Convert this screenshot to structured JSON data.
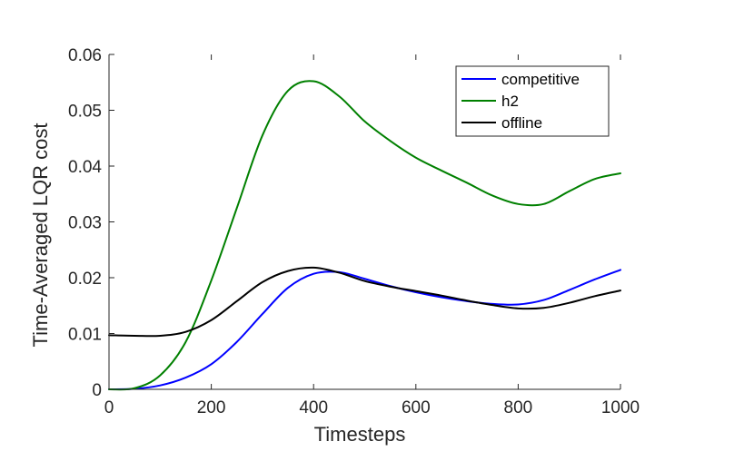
{
  "chart_data": {
    "type": "line",
    "xlabel": "Timesteps",
    "ylabel": "Time-Averaged LQR cost",
    "xlim": [
      0,
      1000
    ],
    "ylim": [
      0,
      0.06
    ],
    "xticks": [
      0,
      200,
      400,
      600,
      800,
      1000
    ],
    "yticks": [
      0,
      0.01,
      0.02,
      0.03,
      0.04,
      0.05,
      0.06
    ],
    "xtick_labels": [
      "0",
      "200",
      "400",
      "600",
      "800",
      "1000"
    ],
    "ytick_labels": [
      "0",
      "0.01",
      "0.02",
      "0.03",
      "0.04",
      "0.05",
      "0.06"
    ],
    "grid": false,
    "legend_position": "top-right",
    "x": [
      0,
      50,
      100,
      150,
      200,
      250,
      300,
      350,
      400,
      450,
      500,
      550,
      600,
      650,
      700,
      750,
      800,
      850,
      900,
      950,
      1000
    ],
    "series": [
      {
        "name": "competitive",
        "color": "#0000ff",
        "values": [
          0,
          0.0001,
          0.0007,
          0.0021,
          0.0045,
          0.0085,
          0.0135,
          0.0182,
          0.0207,
          0.021,
          0.0198,
          0.0185,
          0.0174,
          0.0165,
          0.0158,
          0.0153,
          0.0152,
          0.016,
          0.0178,
          0.0197,
          0.0214
        ]
      },
      {
        "name": "h2",
        "color": "#008000",
        "values": [
          0,
          0.0002,
          0.0025,
          0.0085,
          0.0195,
          0.0325,
          0.0455,
          0.0535,
          0.0552,
          0.0525,
          0.048,
          0.0445,
          0.0415,
          0.0392,
          0.037,
          0.0347,
          0.0332,
          0.0332,
          0.0355,
          0.0377,
          0.0387
        ]
      },
      {
        "name": "offline",
        "color": "#000000",
        "values": [
          0.0097,
          0.0096,
          0.0096,
          0.0103,
          0.0124,
          0.0158,
          0.0192,
          0.0212,
          0.0218,
          0.0209,
          0.0194,
          0.0184,
          0.0176,
          0.0168,
          0.0159,
          0.0151,
          0.0145,
          0.0146,
          0.0155,
          0.0167,
          0.0177
        ]
      }
    ]
  }
}
